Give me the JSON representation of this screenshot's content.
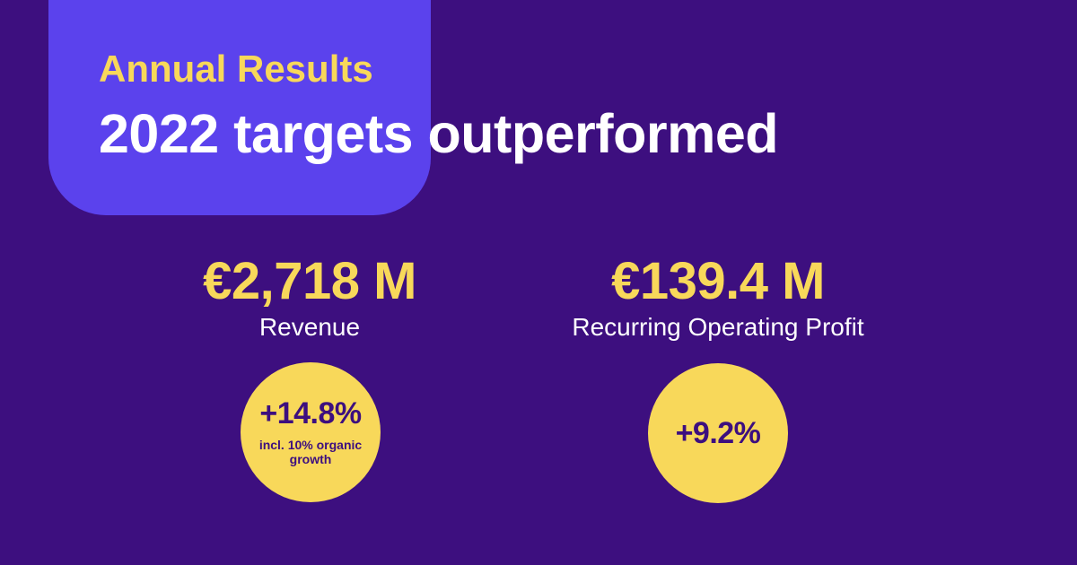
{
  "header": {
    "eyebrow": "Annual Results",
    "headline": "2022 targets outperformed"
  },
  "metrics": [
    {
      "value": "€2,718 M",
      "label": "Revenue",
      "change": "+14.8%",
      "note": "incl. 10% organic growth"
    },
    {
      "value": "€139.4 M",
      "label": "Recurring Operating Profit",
      "change": "+9.2%"
    }
  ],
  "colors": {
    "background": "#3d0f7f",
    "accent_panel": "#5b42ed",
    "highlight": "#f8d85a",
    "headline": "#ffffff",
    "bubble_text": "#3d0f7f"
  }
}
